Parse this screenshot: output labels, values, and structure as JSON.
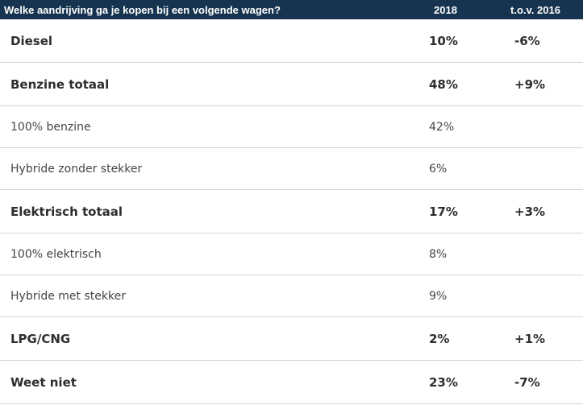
{
  "header": {
    "question": "Welke aandrijving ga je kopen bij een volgende wagen?",
    "year": "2018",
    "compare": "t.o.v. 2016"
  },
  "rows": [
    {
      "label": "Diesel",
      "value": "10%",
      "change": "-6%"
    },
    {
      "label": "Benzine totaal",
      "value": "48%",
      "change": "+9%"
    },
    {
      "label": "100% benzine",
      "value": "42%",
      "change": ""
    },
    {
      "label": "Hybride zonder stekker",
      "value": "6%",
      "change": ""
    },
    {
      "label": "Elektrisch totaal",
      "value": "17%",
      "change": "+3%"
    },
    {
      "label": "100% elektrisch",
      "value": "8%",
      "change": ""
    },
    {
      "label": "Hybride met stekker",
      "value": "9%",
      "change": ""
    },
    {
      "label": "LPG/CNG",
      "value": "2%",
      "change": "+1%"
    },
    {
      "label": "Weet niet",
      "value": "23%",
      "change": "-7%"
    }
  ]
}
